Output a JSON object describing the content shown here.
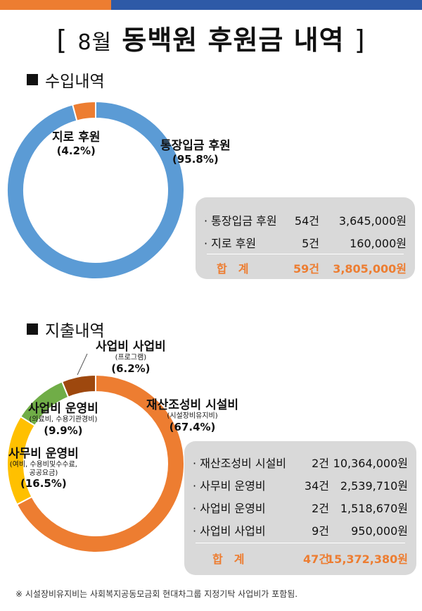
{
  "colors": {
    "orange": "#ed7d31",
    "blue": "#5b9bd5",
    "green": "#70ad47",
    "yellow": "#ffc000",
    "brown": "#9e480e",
    "total_text": "#ed7d31",
    "top_orange": "#ed7d31",
    "top_blue": "#2e5aa7"
  },
  "title": {
    "open": "[",
    "month": "8월",
    "main": "동백원 후원금 내역",
    "close": "]"
  },
  "income": {
    "section_title": "수입내역",
    "rows": [
      {
        "name": "· 통장입금 후원",
        "count": "54건",
        "amount": "3,645,000원"
      },
      {
        "name": "· 지로 후원",
        "count": "5건",
        "amount": "160,000원"
      }
    ],
    "total": {
      "label": "합　계",
      "count": "59건",
      "amount": "3,805,000원"
    }
  },
  "expense": {
    "section_title": "지출내역",
    "rows": [
      {
        "name": "· 재산조성비 시설비",
        "count": "2건",
        "amount": "10,364,000원"
      },
      {
        "name": "· 사무비 운영비",
        "count": "34건",
        "amount": "2,539,710원"
      },
      {
        "name": "· 사업비 운영비",
        "count": "2건",
        "amount": "1,518,670원"
      },
      {
        "name": "· 사업비 사업비",
        "count": "9건",
        "amount": "950,000원"
      }
    ],
    "total": {
      "label": "합　계",
      "count": "47건",
      "amount": "15,372,380원"
    }
  },
  "chart_data": [
    {
      "type": "pie",
      "donut": true,
      "series": [
        {
          "label": "통장입금 후원",
          "sub": "",
          "percent_label": "(95.8%)",
          "value": 95.8,
          "color": "#5b9bd5"
        },
        {
          "label": "지로 후원",
          "sub": "",
          "percent_label": "(4.2%)",
          "value": 4.2,
          "color": "#ed7d31"
        }
      ]
    },
    {
      "type": "pie",
      "donut": true,
      "series": [
        {
          "label": "재산조성비 시설비",
          "sub": "(시설장비유지비)",
          "percent_label": "(67.4%)",
          "value": 67.4,
          "color": "#ed7d31"
        },
        {
          "label": "사무비 운영비",
          "sub": "(여비, 수용비및수수료,\n공공요금)",
          "percent_label": "(16.5%)",
          "value": 16.5,
          "color": "#ffc000"
        },
        {
          "label": "사업비 운영비",
          "sub": "(의료비, 수용기관경비)",
          "percent_label": "(9.9%)",
          "value": 9.9,
          "color": "#70ad47"
        },
        {
          "label": "사업비 사업비",
          "sub": "(프로그램)",
          "percent_label": "(6.2%)",
          "value": 6.2,
          "color": "#9e480e"
        }
      ]
    }
  ],
  "footnote": "※ 시설장비유지비는 사회복지공동모금회 현대차그룹 지정기탁 사업비가 포함됨."
}
